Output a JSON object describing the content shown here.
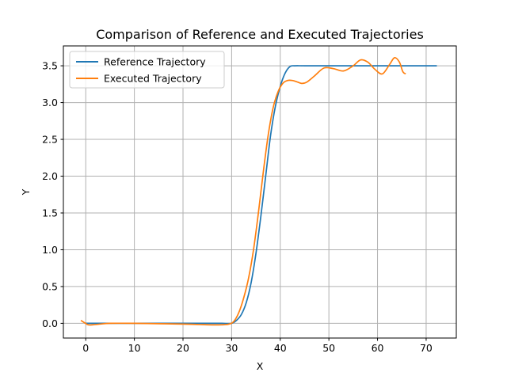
{
  "chart_data": {
    "type": "line",
    "title": "Comparison of Reference and Executed Trajectories",
    "xlabel": "X",
    "ylabel": "Y",
    "xlim": [
      -4.6,
      76.2
    ],
    "ylim": [
      -0.2,
      3.77
    ],
    "xticks": [
      0,
      10,
      20,
      30,
      40,
      50,
      60,
      70
    ],
    "yticks": [
      0.0,
      0.5,
      1.0,
      1.5,
      2.0,
      2.5,
      3.0,
      3.5
    ],
    "ytick_labels": [
      "0.0",
      "0.5",
      "1.0",
      "1.5",
      "2.0",
      "2.5",
      "3.0",
      "3.5"
    ],
    "grid": true,
    "legend_position": "upper-left",
    "series": [
      {
        "name": "Reference Trajectory",
        "color": "#1f77b4",
        "x": [
          0,
          5,
          10,
          15,
          20,
          25,
          28,
          30,
          31,
          32,
          33,
          34,
          35,
          36,
          37,
          38,
          39,
          40,
          41,
          42,
          43,
          45,
          50,
          55,
          60,
          65,
          70,
          72.2
        ],
        "y": [
          0.0,
          0.0,
          0.0,
          0.0,
          0.0,
          0.0,
          0.0,
          0.0,
          0.04,
          0.12,
          0.28,
          0.55,
          0.95,
          1.45,
          2.0,
          2.55,
          2.95,
          3.22,
          3.4,
          3.49,
          3.5,
          3.5,
          3.5,
          3.5,
          3.5,
          3.5,
          3.5,
          3.5
        ]
      },
      {
        "name": "Executed Trajectory",
        "color": "#ff7f0e",
        "x": [
          -1,
          -0.3,
          0.5,
          1.5,
          3,
          5,
          10,
          15,
          20,
          25,
          28,
          29.5,
          30.5,
          31.5,
          32.5,
          33.5,
          34.5,
          35.5,
          36.5,
          37.5,
          38.5,
          39.5,
          40.5,
          41.5,
          42.5,
          43.5,
          44.5,
          45.5,
          47,
          49,
          51,
          53,
          55,
          56.5,
          58,
          59.5,
          61,
          62.5,
          63.5,
          64.5,
          65.2,
          65.8
        ],
        "y": [
          0.04,
          0.01,
          -0.02,
          -0.02,
          -0.01,
          0.0,
          0.0,
          -0.005,
          -0.01,
          -0.02,
          -0.02,
          -0.01,
          0.03,
          0.15,
          0.35,
          0.62,
          1.0,
          1.5,
          2.05,
          2.55,
          2.92,
          3.14,
          3.26,
          3.3,
          3.3,
          3.28,
          3.26,
          3.28,
          3.36,
          3.47,
          3.46,
          3.43,
          3.5,
          3.58,
          3.55,
          3.45,
          3.39,
          3.52,
          3.61,
          3.55,
          3.42,
          3.39
        ]
      }
    ]
  }
}
